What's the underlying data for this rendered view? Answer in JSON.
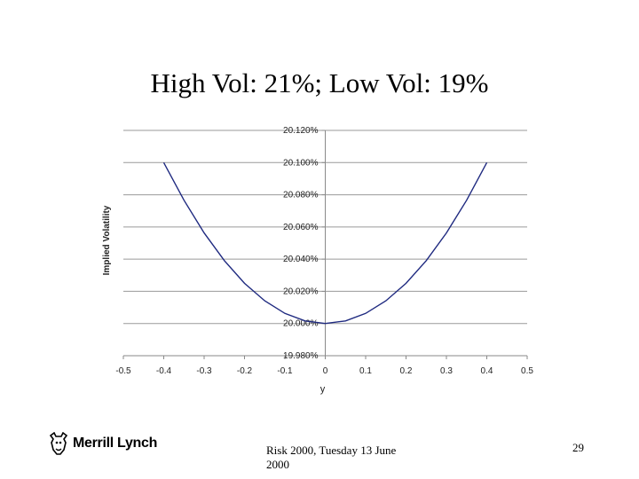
{
  "slide": {
    "title": "High Vol: 21%; Low Vol: 19%",
    "logo_text": "Merrill Lynch",
    "footer_text": "Risk 2000, Tuesday 13 June 2000",
    "page_number": "29"
  },
  "chart_data": {
    "type": "line",
    "title": "",
    "xlabel": "y",
    "ylabel": "Implied Volatility",
    "xlim": [
      -0.5,
      0.5
    ],
    "ylim": [
      19.98,
      20.12
    ],
    "x_ticks": [
      -0.5,
      -0.4,
      -0.3,
      -0.2,
      -0.1,
      0,
      0.1,
      0.2,
      0.3,
      0.4,
      0.5
    ],
    "x_tick_labels": [
      "-0.5",
      "-0.4",
      "-0.3",
      "-0.2",
      "-0.1",
      "0",
      "0.1",
      "0.2",
      "0.3",
      "0.4",
      "0.5"
    ],
    "y_ticks": [
      19.98,
      20.0,
      20.02,
      20.04,
      20.06,
      20.08,
      20.1,
      20.12
    ],
    "y_tick_labels": [
      "19.980%",
      "20.000%",
      "20.020%",
      "20.040%",
      "20.060%",
      "20.080%",
      "20.100%",
      "20.120%"
    ],
    "grid": "horizontal",
    "legend": "none",
    "line_color": "#1f2a80",
    "series": [
      {
        "x": [
          -0.4,
          -0.35,
          -0.3,
          -0.25,
          -0.2,
          -0.15,
          -0.1,
          -0.05,
          0,
          0.05,
          0.1,
          0.15,
          0.2,
          0.25,
          0.3,
          0.35,
          0.4
        ],
        "values": [
          20.1,
          20.0766,
          20.0563,
          20.0391,
          20.025,
          20.0141,
          20.0063,
          20.0016,
          20.0,
          20.0016,
          20.0063,
          20.0141,
          20.025,
          20.0391,
          20.0563,
          20.0766,
          20.1
        ]
      }
    ]
  }
}
